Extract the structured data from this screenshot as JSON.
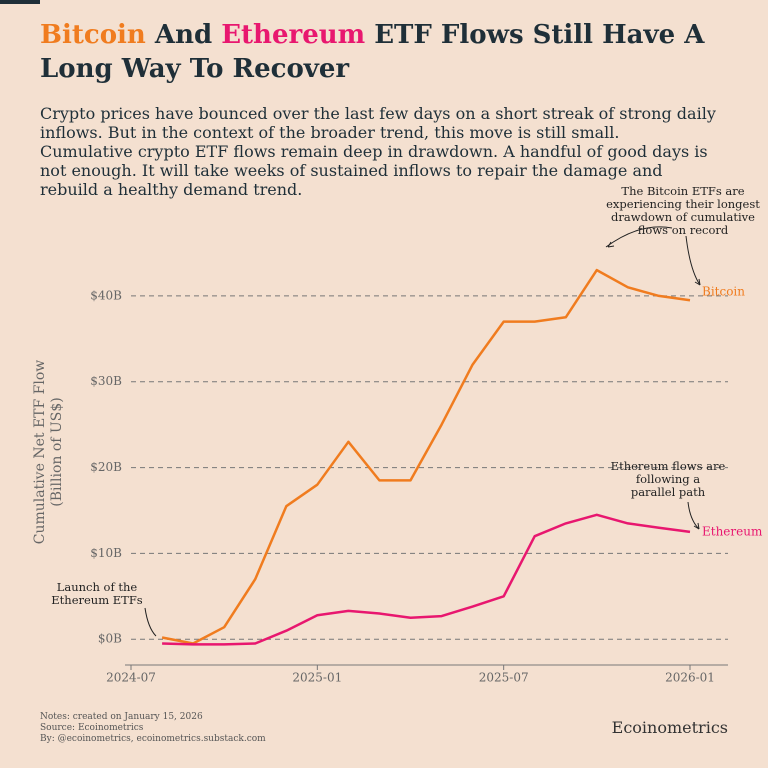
{
  "chart_data": {
    "type": "line",
    "title": {
      "bitcoin": "Bitcoin",
      "and": "And",
      "ethereum": "Ethereum",
      "line1_rest": "ETF Flows Still Have A",
      "line2": "Long Way To Recover"
    },
    "subtitle": [
      "Crypto prices have bounced over the last few days on a short streak of strong daily",
      "inflows. But in the context of the broader trend, this move is still small.",
      "Cumulative crypto ETF flows remain deep in drawdown. A handful of good days is",
      "not enough. It will take weeks of sustained inflows to repair the damage and",
      "rebuild a healthy demand trend."
    ],
    "y_label": [
      "Cumulative Net ETF Flow",
      "(Billion of US$)"
    ],
    "x": [
      "2024-07",
      "2024-08",
      "2024-09",
      "2024-10",
      "2024-11",
      "2024-12",
      "2025-01",
      "2025-02",
      "2025-03",
      "2025-04",
      "2025-05",
      "2025-06",
      "2025-07",
      "2025-08",
      "2025-09",
      "2025-10",
      "2025-11",
      "2025-12",
      "2026-01"
    ],
    "series": [
      {
        "name": "Bitcoin",
        "color": "#f07c1f",
        "values": [
          null,
          0.2,
          -0.5,
          1.4,
          7,
          15.5,
          18,
          23,
          18.5,
          18.5,
          25,
          32,
          37,
          37,
          37.5,
          43,
          41,
          40,
          39.5
        ]
      },
      {
        "name": "Ethereum",
        "color": "#e8176f",
        "values": [
          null,
          -0.5,
          -0.6,
          -0.6,
          -0.5,
          1,
          2.8,
          3.3,
          3,
          2.5,
          2.7,
          3.8,
          5,
          12,
          13.5,
          14.5,
          13.5,
          13,
          12.5
        ]
      }
    ],
    "ylim": [
      -3,
      47
    ],
    "yticks": [
      {
        "value": 0,
        "label": "$0B"
      },
      {
        "value": 10,
        "label": "$10B"
      },
      {
        "value": 20,
        "label": "$20B"
      },
      {
        "value": 30,
        "label": "$30B"
      },
      {
        "value": 40,
        "label": "$40B"
      }
    ],
    "grid": true,
    "annotations": {
      "launch": [
        "Launch of the",
        "Ethereum ETFs"
      ],
      "bitcoin": [
        "The Bitcoin ETFs are",
        "experiencing their longest",
        "drawdown of  cumulative",
        "flows on record"
      ],
      "ethereum": [
        "Ethereum flows are",
        "following a",
        "parallel path"
      ]
    },
    "notes": [
      "Notes: created on January 15, 2026",
      "Source: Ecoinometrics",
      "By: @ecoinometrics, ecoinometrics.substack.com"
    ],
    "brand": "Ecoinometrics"
  }
}
